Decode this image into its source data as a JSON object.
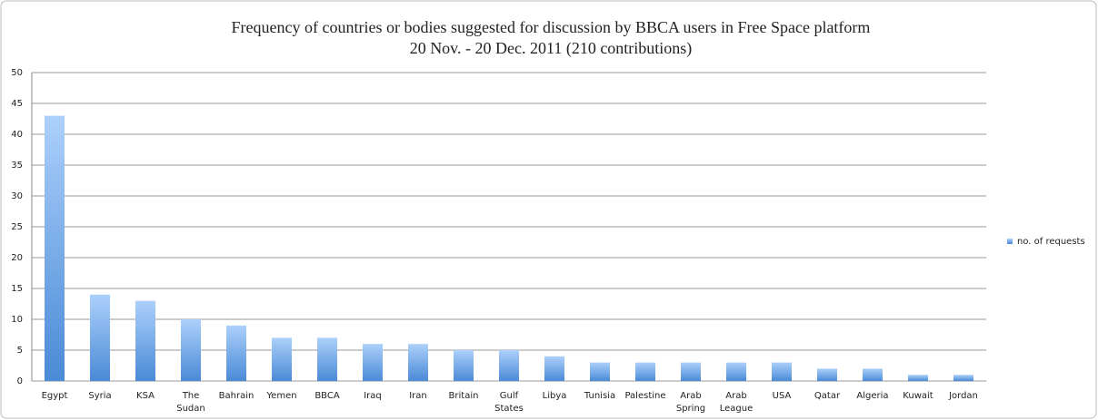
{
  "chart_data": {
    "type": "bar",
    "title": "Frequency of countries or bodies suggested for discussion by BBCA users in Free Space platform",
    "subtitle": "20 Nov. - 20 Dec. 2011  (210 contributions)",
    "categories": [
      "Egypt",
      "Syria",
      "KSA",
      "The Sudan",
      "Bahrain",
      "Yemen",
      "BBCA",
      "Iraq",
      "Iran",
      "Britain",
      "Gulf States",
      "Libya",
      "Tunisia",
      "Palestine",
      "Arab Spring",
      "Arab League",
      "USA",
      "Qatar",
      "Algeria",
      "Kuwait",
      "Jordan"
    ],
    "series": [
      {
        "name": "no. of requests",
        "color": "#4a8ad6",
        "values": [
          43,
          14,
          13,
          10,
          9,
          7,
          7,
          6,
          6,
          5,
          5,
          4,
          3,
          3,
          3,
          3,
          3,
          2,
          2,
          1,
          1
        ]
      }
    ],
    "ylim": [
      0,
      50
    ],
    "yticks": [
      0,
      5,
      10,
      15,
      20,
      25,
      30,
      35,
      40,
      45,
      50
    ],
    "grid": true,
    "legend": "right"
  }
}
